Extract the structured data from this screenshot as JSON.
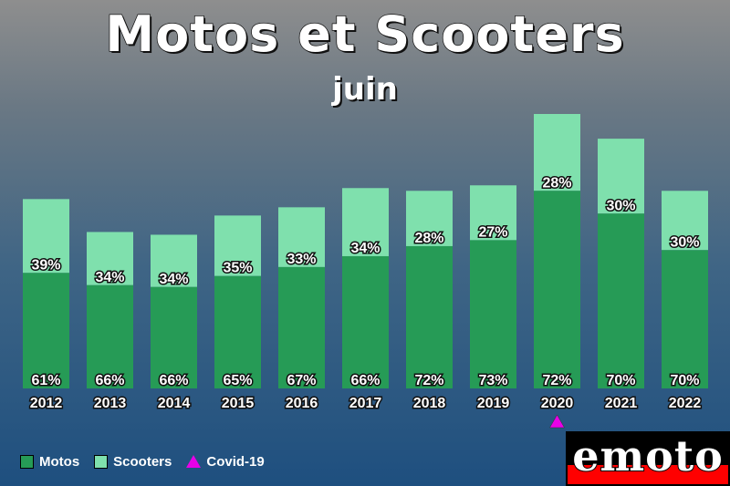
{
  "title": "Motos et Scooters",
  "subtitle": "juin",
  "legend": [
    {
      "label": "Motos",
      "color": "#269b56",
      "shape": "square"
    },
    {
      "label": "Scooters",
      "color": "#7fe0ad",
      "shape": "square"
    },
    {
      "label": "Covid-19",
      "color": "#e800e8",
      "shape": "triangle"
    }
  ],
  "logo": {
    "text": "emoto"
  },
  "chart_data": {
    "type": "bar",
    "stacked": true,
    "categories": [
      "2012",
      "2013",
      "2014",
      "2015",
      "2016",
      "2017",
      "2018",
      "2019",
      "2020",
      "2021",
      "2022"
    ],
    "relative_totals": [
      0.69,
      0.57,
      0.56,
      0.63,
      0.66,
      0.73,
      0.72,
      0.74,
      1.0,
      0.91,
      0.72
    ],
    "series": [
      {
        "name": "Motos",
        "color": "#269b56",
        "labels": [
          "61%",
          "66%",
          "66%",
          "65%",
          "67%",
          "66%",
          "72%",
          "73%",
          "72%",
          "70%",
          "70%"
        ],
        "values": [
          61,
          66,
          66,
          65,
          67,
          66,
          72,
          73,
          72,
          70,
          70
        ]
      },
      {
        "name": "Scooters",
        "color": "#7fe0ad",
        "labels": [
          "39%",
          "34%",
          "34%",
          "35%",
          "33%",
          "34%",
          "28%",
          "27%",
          "28%",
          "30%",
          "30%"
        ],
        "values": [
          39,
          34,
          34,
          35,
          33,
          34,
          28,
          27,
          28,
          30,
          30
        ]
      }
    ],
    "annotations": [
      {
        "category": "2020",
        "marker": "triangle",
        "color": "#e800e8",
        "label": "Covid-19"
      }
    ]
  }
}
